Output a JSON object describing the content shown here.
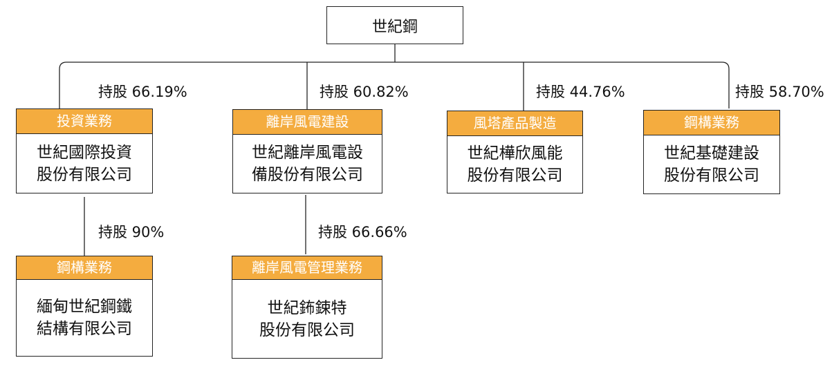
{
  "root": {
    "name": "世紀鋼"
  },
  "subsidiaries": [
    {
      "category": "投資業務",
      "lines": [
        "世紀國際投資",
        "股份有限公司"
      ],
      "stake": "持股 66.19%"
    },
    {
      "category": "離岸風電建設",
      "lines": [
        "世紀離岸風電設",
        "備股份有限公司"
      ],
      "stake": "持股 60.82%"
    },
    {
      "category": "風塔產品製造",
      "lines": [
        "世紀樺欣風能",
        "股份有限公司"
      ],
      "stake": "持股 44.76%"
    },
    {
      "category": "鋼構業務",
      "lines": [
        "世紀基礎建設",
        "股份有限公司"
      ],
      "stake": "持股 58.70%"
    }
  ],
  "second_level": [
    {
      "category": "鋼構業務",
      "lines": [
        "緬甸世紀鋼鐵",
        "結構有限公司"
      ],
      "stake": "持股 90%"
    },
    {
      "category": "離岸風電管理業務",
      "lines": [
        "世紀鈽鋉特",
        "股份有限公司"
      ],
      "stake": "持股 66.66%"
    }
  ],
  "colors": {
    "header": "#F4AC3F",
    "line": "#222222"
  }
}
